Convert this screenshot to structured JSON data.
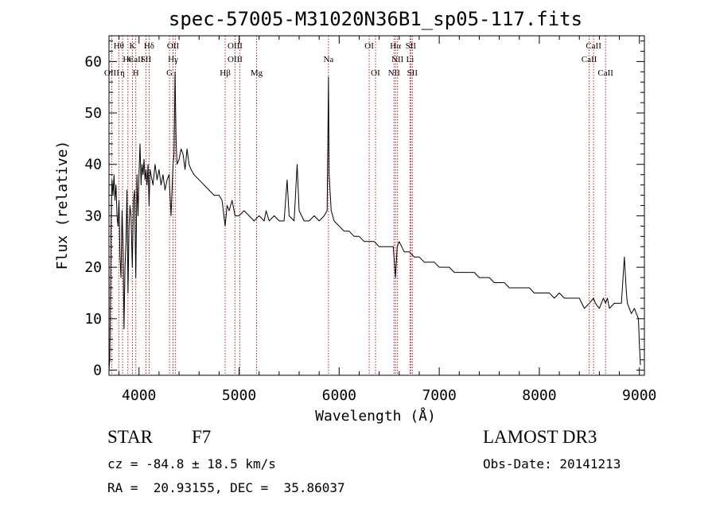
{
  "colors": {
    "spectrum": "#000000",
    "line_markers": "#b22222",
    "axes": "#000000",
    "background": "#ffffff"
  },
  "footer": {
    "object_class": "STAR",
    "subclass": "F7",
    "survey": "LAMOST DR3",
    "cz": "cz = -84.8 ± 18.5 km/s",
    "obs_date": "Obs-Date: 20141213",
    "coords": "RA =  20.93155, DEC =  35.86037"
  },
  "chart_data": {
    "type": "line",
    "title": "spec-57005-M31020N36B1_sp05-117.fits",
    "xlabel": "Wavelength (Å)",
    "ylabel": "Flux (relative)",
    "xlim": [
      3700,
      9050
    ],
    "ylim": [
      -1,
      65
    ],
    "xticks": [
      "4000",
      "5000",
      "6000",
      "7000",
      "8000",
      "9000"
    ],
    "yticks": [
      "0",
      "10",
      "20",
      "30",
      "40",
      "50",
      "60"
    ],
    "grid": false,
    "legend": "none",
    "series": [
      {
        "x": [
          3700,
          3708,
          3715,
          3722,
          3730,
          3740,
          3750,
          3760,
          3770,
          3780,
          3790,
          3800,
          3810,
          3820,
          3830,
          3840,
          3850,
          3860,
          3870,
          3880,
          3890,
          3900,
          3910,
          3920,
          3933,
          3945,
          3955,
          3968,
          3980,
          3990,
          4000,
          4010,
          4020,
          4030,
          4040,
          4050,
          4060,
          4070,
          4080,
          4090,
          4101,
          4110,
          4120,
          4140,
          4160,
          4180,
          4200,
          4220,
          4240,
          4260,
          4280,
          4300,
          4320,
          4340,
          4350,
          4360,
          4370,
          4380,
          4400,
          4420,
          4440,
          4460,
          4480,
          4500,
          4520,
          4550,
          4600,
          4650,
          4700,
          4750,
          4800,
          4830,
          4861,
          4880,
          4900,
          4930,
          4960,
          5000,
          5050,
          5100,
          5150,
          5200,
          5250,
          5270,
          5300,
          5350,
          5400,
          5450,
          5480,
          5500,
          5550,
          5580,
          5600,
          5650,
          5700,
          5750,
          5800,
          5850,
          5880,
          5893,
          5900,
          5920,
          5950,
          6000,
          6050,
          6100,
          6150,
          6200,
          6250,
          6300,
          6350,
          6400,
          6450,
          6500,
          6540,
          6563,
          6580,
          6600,
          6650,
          6700,
          6750,
          6800,
          6850,
          6900,
          6950,
          7000,
          7050,
          7100,
          7150,
          7200,
          7250,
          7300,
          7350,
          7400,
          7450,
          7500,
          7550,
          7600,
          7650,
          7700,
          7750,
          7800,
          7850,
          7900,
          7950,
          8000,
          8050,
          8100,
          8150,
          8200,
          8250,
          8300,
          8350,
          8400,
          8450,
          8500,
          8542,
          8560,
          8600,
          8640,
          8662,
          8680,
          8700,
          8750,
          8800,
          8820,
          8850,
          8870,
          8880,
          8900,
          8920,
          8950,
          8970,
          8990,
          9000,
          9010
        ],
        "values": [
          0,
          2,
          15,
          30,
          37,
          34,
          38,
          33,
          36,
          30,
          28,
          33,
          22,
          18,
          31,
          25,
          8,
          20,
          25,
          35,
          15,
          28,
          32,
          30,
          20,
          33,
          35,
          18,
          38,
          30,
          38,
          44,
          36,
          40,
          38,
          41,
          37,
          39,
          36,
          40,
          32,
          39,
          38,
          36,
          40,
          37,
          39,
          36,
          38,
          35,
          37,
          38,
          30,
          40,
          42,
          58,
          45,
          40,
          41,
          43,
          42,
          39,
          43,
          40,
          39,
          38,
          37,
          36,
          35,
          34,
          34,
          33,
          28,
          32,
          31,
          33,
          30,
          30,
          31,
          30,
          29,
          30,
          29,
          31,
          29,
          30,
          29,
          29,
          37,
          30,
          29,
          40,
          31,
          29,
          29,
          30,
          29,
          30,
          31,
          57,
          38,
          31,
          29,
          28,
          27,
          27,
          26,
          26,
          25,
          25,
          25,
          24,
          24,
          24,
          24,
          18,
          24,
          25,
          23,
          23,
          22,
          22,
          21,
          21,
          21,
          20,
          20,
          20,
          19,
          19,
          19,
          19,
          19,
          18,
          18,
          18,
          17,
          17,
          17,
          16,
          16,
          16,
          16,
          16,
          15,
          15,
          15,
          15,
          14,
          15,
          14,
          14,
          14,
          14,
          12,
          13,
          14,
          13,
          12,
          14,
          13,
          14,
          12,
          13,
          13,
          13,
          22,
          15,
          13,
          12,
          11,
          12,
          11,
          10,
          5,
          1
        ]
      }
    ],
    "line_labels": [
      {
        "text": "Hθ",
        "wl": 3798,
        "row": 1
      },
      {
        "text": "K",
        "wl": 3934,
        "row": 1
      },
      {
        "text": "Hδ",
        "wl": 4101,
        "row": 1
      },
      {
        "text": "OII",
        "wl": 4340,
        "row": 1
      },
      {
        "text": "OIII",
        "wl": 4960,
        "row": 1
      },
      {
        "text": "OI",
        "wl": 6300,
        "row": 1
      },
      {
        "text": "Hα",
        "wl": 6563,
        "row": 1
      },
      {
        "text": "SII",
        "wl": 6716,
        "row": 1
      },
      {
        "text": "CaII",
        "wl": 8542,
        "row": 1
      },
      {
        "text": "CaII",
        "wl": 3968,
        "row": 2
      },
      {
        "text": "He",
        "wl": 3889,
        "row": 2
      },
      {
        "text": "SII",
        "wl": 4070,
        "row": 2
      },
      {
        "text": "Hγ",
        "wl": 4340,
        "row": 2
      },
      {
        "text": "OIII",
        "wl": 4960,
        "row": 2
      },
      {
        "text": "Na",
        "wl": 5893,
        "row": 2
      },
      {
        "text": "NII",
        "wl": 6583,
        "row": 2
      },
      {
        "text": "Li",
        "wl": 6708,
        "row": 2
      },
      {
        "text": "CaII",
        "wl": 8498,
        "row": 2
      },
      {
        "text": "OIII",
        "wl": 3727,
        "row": 3
      },
      {
        "text": "η",
        "wl": 3835,
        "row": 3
      },
      {
        "text": "H",
        "wl": 3968,
        "row": 3
      },
      {
        "text": "G",
        "wl": 4305,
        "row": 3
      },
      {
        "text": "Hβ",
        "wl": 4861,
        "row": 3
      },
      {
        "text": "Mg",
        "wl": 5175,
        "row": 3
      },
      {
        "text": "OI",
        "wl": 6363,
        "row": 3
      },
      {
        "text": "NII",
        "wl": 6548,
        "row": 3
      },
      {
        "text": "SII",
        "wl": 6731,
        "row": 3
      },
      {
        "text": "CaII",
        "wl": 8662,
        "row": 3
      }
    ],
    "line_markers": [
      3727,
      3798,
      3835,
      3889,
      3934,
      3968,
      4070,
      4101,
      4305,
      4340,
      4363,
      4861,
      4959,
      5007,
      5175,
      5893,
      6300,
      6363,
      6548,
      6563,
      6583,
      6708,
      6716,
      6731,
      8498,
      8542,
      8662
    ]
  }
}
